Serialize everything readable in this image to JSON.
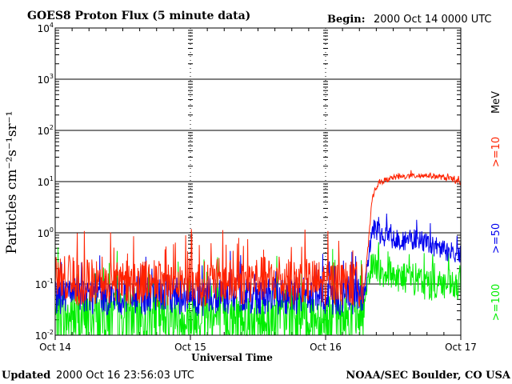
{
  "chart_data": {
    "type": "line",
    "title": "GOES8 Proton Flux (5 minute data)",
    "begin_label": "Begin:",
    "begin_value": "2000 Oct 14 0000 UTC",
    "xlabel": "Universal Time",
    "ylabel": "Particles cm⁻²s⁻¹sr⁻¹",
    "yscale": "log",
    "ylim": [
      0.01,
      10000
    ],
    "yticks": [
      {
        "value": 0.01,
        "base": "10",
        "exp": "-2"
      },
      {
        "value": 0.1,
        "base": "10",
        "exp": "-1"
      },
      {
        "value": 1,
        "base": "10",
        "exp": "0"
      },
      {
        "value": 10,
        "base": "10",
        "exp": "1"
      },
      {
        "value": 100,
        "base": "10",
        "exp": "2"
      },
      {
        "value": 1000,
        "base": "10",
        "exp": "3"
      },
      {
        "value": 10000,
        "base": "10",
        "exp": "4"
      }
    ],
    "xlim_hours": [
      0,
      72
    ],
    "xticks": [
      {
        "hour": 0,
        "label": "Oct 14"
      },
      {
        "hour": 24,
        "label": "Oct 15"
      },
      {
        "hour": 48,
        "label": "Oct 16"
      },
      {
        "hour": 72,
        "label": "Oct 17"
      }
    ],
    "grid": true,
    "legend_unit": "MeV",
    "series": [
      {
        "name": ">=10",
        "color": "#ff2200",
        "x_hours": [
          0,
          2,
          4,
          6,
          8,
          10,
          12,
          14,
          16,
          18,
          20,
          22,
          24,
          26,
          28,
          30,
          32,
          34,
          36,
          38,
          40,
          42,
          44,
          46,
          48,
          50,
          52,
          54,
          55,
          55.7,
          56.2,
          56.7,
          57.2,
          58,
          60,
          62,
          64,
          66,
          68,
          70,
          72
        ],
        "values": [
          0.12,
          0.13,
          0.1,
          0.11,
          0.1,
          0.12,
          0.1,
          0.11,
          0.12,
          0.1,
          0.1,
          0.11,
          0.12,
          0.1,
          0.11,
          0.12,
          0.1,
          0.11,
          0.13,
          0.12,
          0.11,
          0.1,
          0.12,
          0.11,
          0.1,
          0.11,
          0.1,
          0.1,
          0.12,
          0.8,
          4,
          7,
          8.5,
          10,
          12,
          12.5,
          13,
          13.3,
          12.5,
          11.5,
          9.5
        ]
      },
      {
        "name": ">=50",
        "color": "#0000ee",
        "x_hours": [
          0,
          2,
          4,
          6,
          8,
          10,
          12,
          14,
          16,
          18,
          20,
          22,
          24,
          26,
          28,
          30,
          32,
          34,
          36,
          38,
          40,
          42,
          44,
          46,
          48,
          50,
          52,
          54,
          55,
          55.7,
          56.3,
          57,
          58,
          60,
          62,
          64,
          66,
          68,
          70,
          72
        ],
        "values": [
          0.06,
          0.06,
          0.065,
          0.06,
          0.06,
          0.06,
          0.055,
          0.06,
          0.06,
          0.06,
          0.065,
          0.06,
          0.06,
          0.055,
          0.06,
          0.06,
          0.065,
          0.06,
          0.06,
          0.06,
          0.055,
          0.06,
          0.06,
          0.06,
          0.06,
          0.055,
          0.06,
          0.06,
          0.07,
          0.4,
          1.2,
          1.1,
          0.9,
          0.8,
          0.7,
          0.75,
          0.6,
          0.5,
          0.42,
          0.4
        ]
      },
      {
        "name": ">=100",
        "color": "#00ee00",
        "x_hours": [
          0,
          2,
          4,
          6,
          8,
          10,
          12,
          14,
          16,
          18,
          20,
          22,
          24,
          26,
          28,
          30,
          32,
          34,
          36,
          38,
          40,
          42,
          44,
          46,
          48,
          50,
          52,
          54,
          55,
          55.7,
          56.3,
          57,
          58,
          60,
          62,
          64,
          66,
          68,
          70,
          72
        ],
        "values": [
          0.022,
          0.022,
          0.02,
          0.022,
          0.021,
          0.022,
          0.02,
          0.022,
          0.021,
          0.022,
          0.02,
          0.022,
          0.021,
          0.022,
          0.02,
          0.022,
          0.021,
          0.022,
          0.02,
          0.022,
          0.021,
          0.022,
          0.02,
          0.022,
          0.021,
          0.022,
          0.02,
          0.022,
          0.03,
          0.12,
          0.25,
          0.22,
          0.18,
          0.16,
          0.13,
          0.12,
          0.1,
          0.1,
          0.09,
          0.08
        ]
      }
    ]
  },
  "footer": {
    "updated_label": "Updated",
    "updated_value": "2000 Oct 16 23:56:03 UTC",
    "credit": "NOAA/SEC Boulder, CO USA"
  }
}
